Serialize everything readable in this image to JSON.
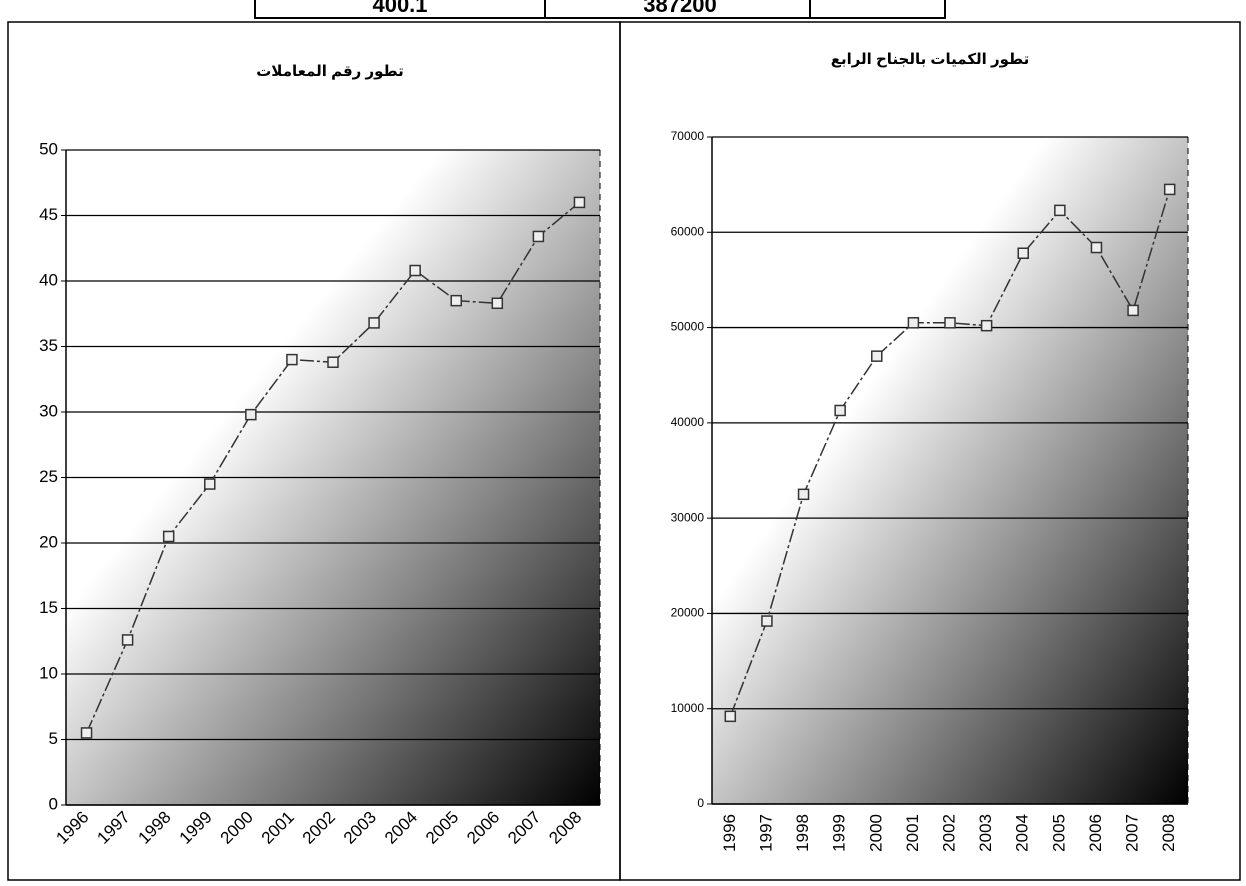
{
  "table": {
    "cells": [
      "400.1",
      "387200"
    ]
  },
  "chart_data": [
    {
      "type": "line",
      "title": "تطور رقم المعاملات",
      "categories": [
        "1996",
        "1997",
        "1998",
        "1999",
        "2000",
        "2001",
        "2002",
        "2003",
        "2004",
        "2005",
        "2006",
        "2007",
        "2008"
      ],
      "values": [
        5.5,
        12.6,
        20.5,
        24.5,
        29.8,
        34,
        33.8,
        36.8,
        40.8,
        38.5,
        38.3,
        43.4,
        46
      ],
      "color": "#333333",
      "ylim": [
        0,
        50
      ],
      "yticks": [
        0,
        5,
        10,
        15,
        20,
        25,
        30,
        35,
        40,
        45,
        50
      ],
      "grid": true
    },
    {
      "type": "line",
      "title": "تطور الكميات بالجناح الرابع",
      "categories": [
        "1996",
        "1997",
        "1998",
        "1999",
        "2000",
        "2001",
        "2002",
        "2003",
        "2004",
        "2005",
        "2006",
        "2007",
        "2008"
      ],
      "values": [
        9200,
        19200,
        32500,
        41300,
        47000,
        50500,
        50500,
        50200,
        57800,
        62300,
        58400,
        51800,
        64500
      ],
      "color": "#333333",
      "ylim": [
        0,
        70000
      ],
      "yticks": [
        0,
        10000,
        20000,
        30000,
        40000,
        50000,
        60000,
        70000
      ],
      "grid": true
    }
  ]
}
